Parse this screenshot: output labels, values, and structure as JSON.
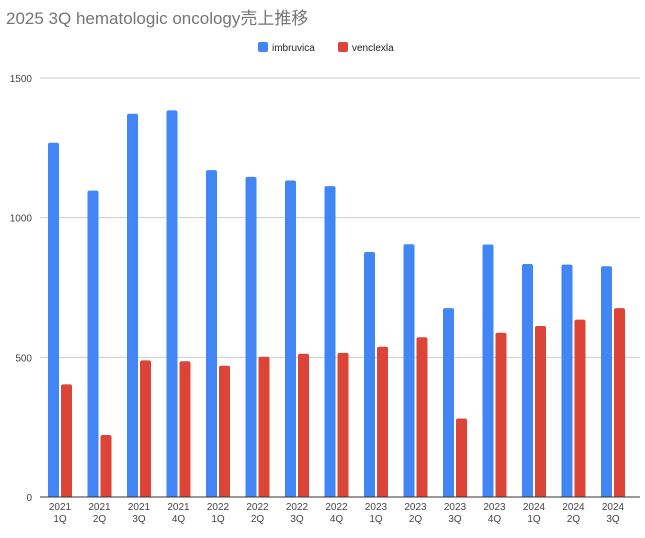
{
  "chart_data": {
    "type": "bar",
    "title": "2025 3Q hematologic oncology売上推移",
    "xlabel": "",
    "ylabel": "",
    "ylim": [
      0,
      1500
    ],
    "yticks": [
      0,
      500,
      1000,
      1500
    ],
    "grid": true,
    "legend_position": "top-center",
    "categories": [
      [
        "2021",
        "1Q"
      ],
      [
        "2021",
        "2Q"
      ],
      [
        "2021",
        "3Q"
      ],
      [
        "2021",
        "4Q"
      ],
      [
        "2022",
        "1Q"
      ],
      [
        "2022",
        "2Q"
      ],
      [
        "2022",
        "3Q"
      ],
      [
        "2022",
        "4Q"
      ],
      [
        "2023",
        "1Q"
      ],
      [
        "2023",
        "2Q"
      ],
      [
        "2023",
        "3Q"
      ],
      [
        "2023",
        "4Q"
      ],
      [
        "2024",
        "1Q"
      ],
      [
        "2024",
        "2Q"
      ],
      [
        "2024",
        "3Q"
      ]
    ],
    "series": [
      {
        "name": "imbruvica",
        "color": "#4285f4",
        "values": [
          1268,
          1097,
          1372,
          1384,
          1170,
          1146,
          1133,
          1113,
          877,
          905,
          676,
          904,
          834,
          832,
          826
        ]
      },
      {
        "name": "venclexla",
        "color": "#db4437",
        "values": [
          403,
          222,
          489,
          486,
          470,
          502,
          513,
          516,
          538,
          572,
          281,
          588,
          612,
          635,
          676
        ]
      }
    ]
  }
}
